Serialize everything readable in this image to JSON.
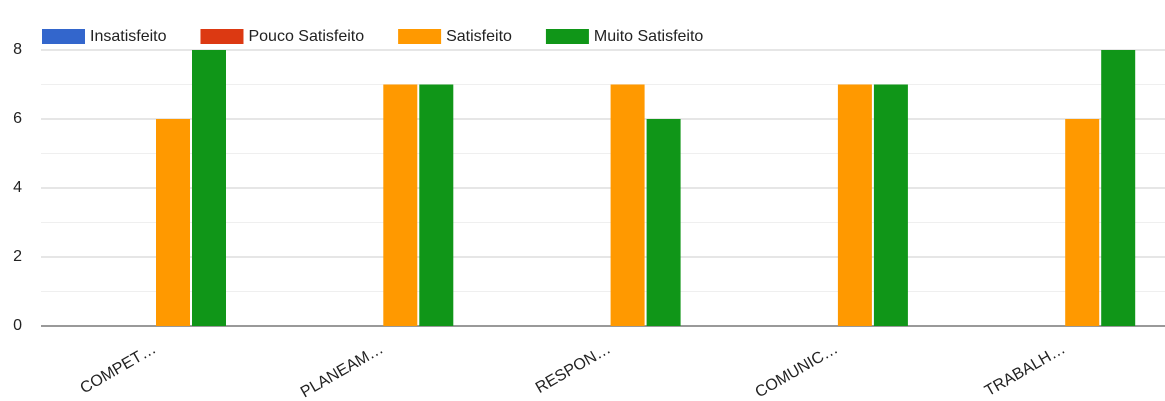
{
  "chart_data": {
    "type": "bar",
    "categories": [
      "COMPET…",
      "PLANEAM…",
      "RESPON…",
      "COMUNIC…",
      "TRABALH…"
    ],
    "series": [
      {
        "name": "Insatisfeito",
        "color": "#3366cc",
        "values": [
          0,
          0,
          0,
          0,
          0
        ]
      },
      {
        "name": "Pouco Satisfeito",
        "color": "#dc3912",
        "values": [
          0,
          0,
          0,
          0,
          0
        ]
      },
      {
        "name": "Satisfeito",
        "color": "#ff9900",
        "values": [
          6,
          7,
          7,
          7,
          6
        ]
      },
      {
        "name": "Muito Satisfeito",
        "color": "#109618",
        "values": [
          8,
          7,
          6,
          7,
          8
        ]
      }
    ],
    "ylim": [
      0,
      8
    ],
    "yticks": [
      0,
      2,
      4,
      6,
      8
    ],
    "minor_yticks": [
      1,
      3,
      5,
      7
    ],
    "grid": true,
    "legend": "top"
  }
}
